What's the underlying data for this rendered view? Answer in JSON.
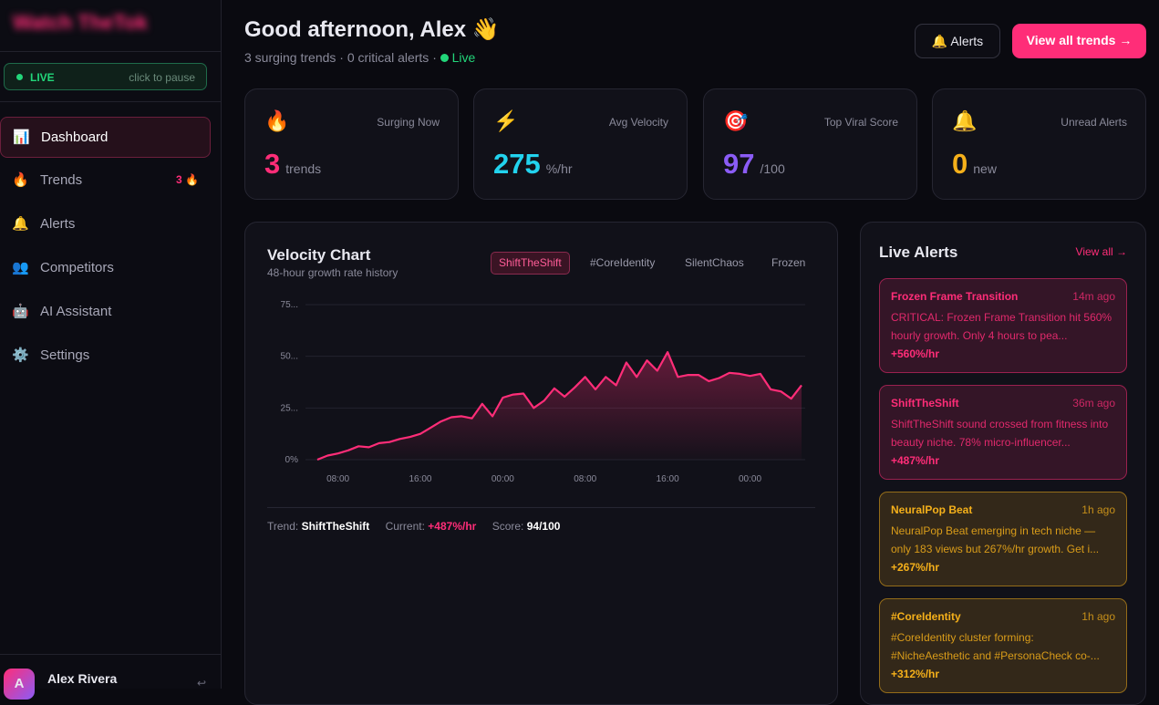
{
  "sidebar": {
    "logo": "Watch TheTok",
    "live": {
      "label": "LIVE",
      "hint": "click to pause"
    },
    "nav": [
      {
        "icon": "📊",
        "label": "Dashboard"
      },
      {
        "icon": "🔥",
        "label": "Trends",
        "badge": "3 🔥"
      },
      {
        "icon": "🔔",
        "label": "Alerts"
      },
      {
        "icon": "👥",
        "label": "Competitors"
      },
      {
        "icon": "🤖",
        "label": "AI Assistant"
      },
      {
        "icon": "⚙️",
        "label": "Settings"
      }
    ],
    "user": {
      "initial": "A",
      "name": "Alex Rivera",
      "action": "↩"
    }
  },
  "header": {
    "greeting": "Good afternoon, Alex 👋",
    "subtitle": "3 surging trends · 0 critical alerts ·",
    "live": "Live",
    "alerts_button": "🔔 Alerts",
    "cta": "View all trends →"
  },
  "stats": [
    {
      "icon": "🔥",
      "label": "Surging Now",
      "value": "3",
      "unit": "trends",
      "color": "#ff2d78"
    },
    {
      "icon": "⚡",
      "label": "Avg Velocity",
      "value": "275",
      "unit": "%/hr",
      "color": "#22d3ee"
    },
    {
      "icon": "🎯",
      "label": "Top Viral Score",
      "value": "97",
      "unit": "/100",
      "color": "#8b5cf6"
    },
    {
      "icon": "🔔",
      "label": "Unread Alerts",
      "value": "0",
      "unit": "new",
      "color": "#f5b01a"
    }
  ],
  "chart_data": {
    "type": "line",
    "title": "Velocity Chart",
    "subtitle": "48-hour growth rate history",
    "tabs": [
      "ShiftTheShift",
      "#CoreIdentity",
      "SilentChaos",
      "Frozen"
    ],
    "active_tab": 0,
    "categories": [
      null,
      null,
      "08:00",
      null,
      null,
      null,
      null,
      null,
      null,
      null,
      "16:00",
      null,
      null,
      null,
      null,
      null,
      null,
      null,
      "00:00",
      null,
      null,
      null,
      null,
      null,
      null,
      null,
      "08:00",
      null,
      null,
      null,
      null,
      null,
      null,
      null,
      "16:00",
      null,
      null,
      null,
      null,
      null,
      null,
      null,
      "00:00",
      null,
      null,
      null,
      null,
      null
    ],
    "series": [
      {
        "name": "ShiftTheShift",
        "color": "#ff2d78",
        "values": [
          0,
          2,
          3,
          4.5,
          6.5,
          6,
          8,
          8.5,
          10,
          11,
          12.5,
          15.5,
          18.5,
          20.5,
          21,
          20,
          27,
          21,
          30,
          31.5,
          32,
          25,
          28.5,
          34.5,
          30.5,
          35,
          40,
          34,
          40,
          36,
          47,
          40,
          48,
          43,
          52,
          40,
          41,
          41,
          38,
          39.5,
          42,
          41.5,
          40.5,
          41.5,
          34,
          33,
          29.5,
          36
        ]
      }
    ],
    "ylim": [
      0,
      75
    ],
    "yticks": [
      {
        "value": 0,
        "label": "0%"
      },
      {
        "value": 25,
        "label": "25..."
      },
      {
        "value": 50,
        "label": "50..."
      },
      {
        "value": 75,
        "label": "75..."
      }
    ],
    "grid": true
  },
  "chart_footer": {
    "trend_label": "Trend:",
    "current_label": "Current:",
    "current": "+487%/hr",
    "score_label": "Score:",
    "score": "94/100"
  },
  "alerts": {
    "title": "Live Alerts",
    "view_all": "View all →",
    "items": [
      {
        "title": "Frozen Frame Transition",
        "time": "14m ago",
        "text": "CRITICAL: Frozen Frame Transition hit 560% hourly growth. Only 4 hours to pea...",
        "rate": "+560%/hr",
        "color": "#ff2d78"
      },
      {
        "title": "ShiftTheShift",
        "time": "36m ago",
        "text": "ShiftTheShift sound crossed from fitness into beauty niche. 78% micro-influencer...",
        "rate": "+487%/hr",
        "color": "#ff2d78"
      },
      {
        "title": "NeuralPop Beat",
        "time": "1h ago",
        "text": "NeuralPop Beat emerging in tech niche — only 183 views but 267%/hr growth. Get i...",
        "rate": "+267%/hr",
        "color": "#f5b01a"
      },
      {
        "title": "#CoreIdentity",
        "time": "1h ago",
        "text": "#CoreIdentity cluster forming: #NicheAesthetic and #PersonaCheck co-...",
        "rate": "+312%/hr",
        "color": "#f5b01a"
      }
    ]
  }
}
